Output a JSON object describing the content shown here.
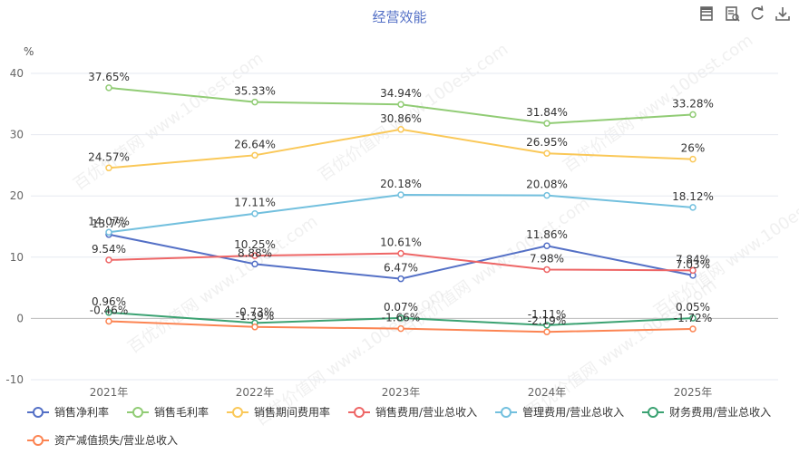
{
  "chart_data": {
    "type": "line",
    "title": "经营效能",
    "unit": "%",
    "categories": [
      "2021年",
      "2022年",
      "2023年",
      "2024年",
      "2025年"
    ],
    "ylim": [
      -10,
      40
    ],
    "yticks": [
      -10,
      0,
      10,
      20,
      30,
      40
    ],
    "grid": true,
    "legend_position": "bottom",
    "series": [
      {
        "name": "销售净利率",
        "color": "#5470c6",
        "values": [
          13.7,
          8.88,
          6.47,
          11.86,
          7.03
        ],
        "labels": [
          "13.7%",
          "8.88%",
          "6.47%",
          "11.86%",
          "7.03%"
        ]
      },
      {
        "name": "销售毛利率",
        "color": "#91cc75",
        "values": [
          37.65,
          35.33,
          34.94,
          31.84,
          33.28
        ],
        "labels": [
          "37.65%",
          "35.33%",
          "34.94%",
          "31.84%",
          "33.28%"
        ]
      },
      {
        "name": "销售期间费用率",
        "color": "#fac858",
        "values": [
          24.57,
          26.64,
          30.86,
          26.95,
          26
        ],
        "labels": [
          "24.57%",
          "26.64%",
          "30.86%",
          "26.95%",
          "26%"
        ]
      },
      {
        "name": "销售费用/营业总收入",
        "color": "#ee6666",
        "values": [
          9.54,
          10.25,
          10.61,
          7.98,
          7.84
        ],
        "labels": [
          "9.54%",
          "10.25%",
          "10.61%",
          "7.98%",
          "7.84%"
        ]
      },
      {
        "name": "管理费用/营业总收入",
        "color": "#73c0de",
        "values": [
          14.07,
          17.11,
          20.18,
          20.08,
          18.12
        ],
        "labels": [
          "14.07%",
          "17.11%",
          "20.18%",
          "20.08%",
          "18.12%"
        ]
      },
      {
        "name": "财务费用/营业总收入",
        "color": "#3ba272",
        "values": [
          0.96,
          -0.73,
          0.07,
          -1.11,
          0.05
        ],
        "labels": [
          "0.96%",
          "-0.73%",
          "0.07%",
          "-1.11%",
          "0.05%"
        ]
      },
      {
        "name": "资产减值损失/营业总收入",
        "color": "#fc8452",
        "values": [
          -0.46,
          -1.39,
          -1.66,
          -2.19,
          -1.72
        ],
        "labels": [
          "-0.46%",
          "-1.39%",
          "-1.66%",
          "-2.19%",
          "-1.72%"
        ]
      }
    ]
  },
  "watermark": "百优价值网 www.100est.com",
  "toolbar": [
    {
      "name": "data-view-icon"
    },
    {
      "name": "save-image-icon"
    },
    {
      "name": "restore-icon"
    },
    {
      "name": "download-icon"
    }
  ]
}
